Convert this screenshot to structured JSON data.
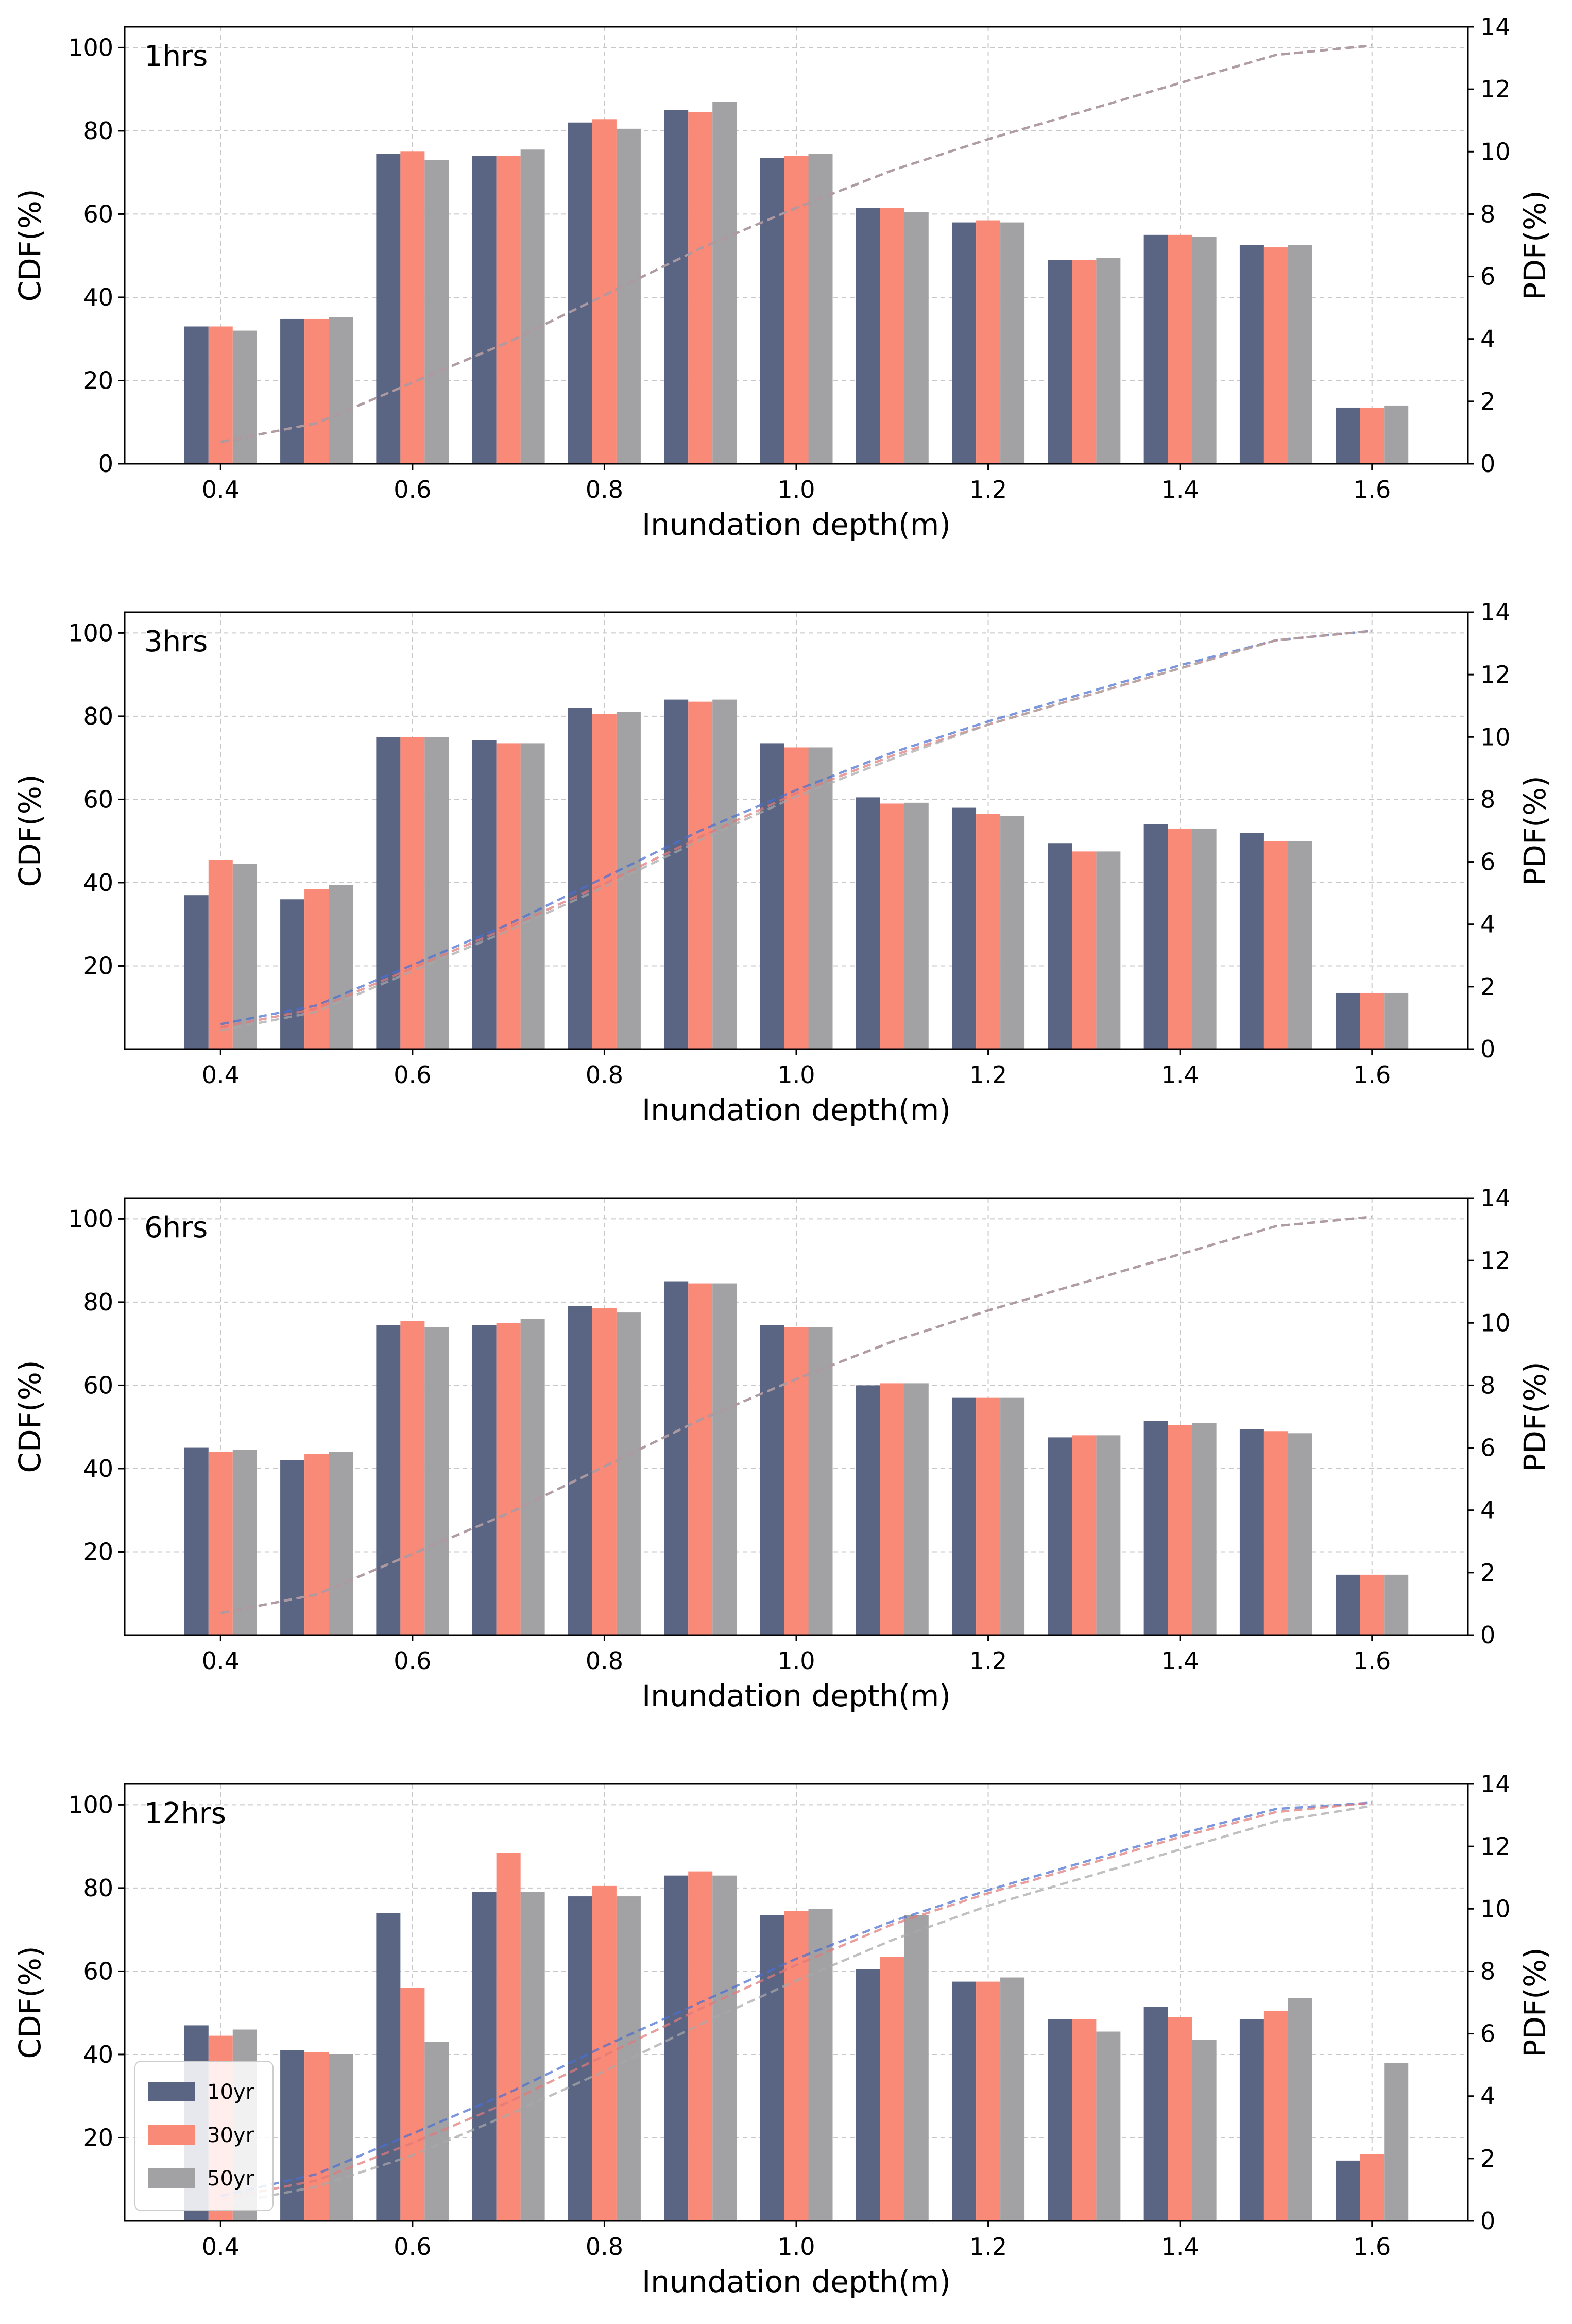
{
  "chart_data": [
    {
      "type": "bar",
      "title": "1hrs",
      "xlabel": "Inundation depth(m)",
      "ylabel": "CDF(%)",
      "ylabel_right": "PDF(%)",
      "ylim": [
        0,
        105
      ],
      "ylim_right": [
        0,
        14
      ],
      "y_ticks": [
        0,
        20,
        40,
        60,
        80,
        100
      ],
      "y_ticks_right": [
        0,
        2,
        4,
        6,
        8,
        10,
        12,
        14
      ],
      "x_ticks": [
        "0.4",
        "0.6",
        "0.8",
        "1.0",
        "1.2",
        "1.4",
        "1.6"
      ],
      "categories": [
        0.4,
        0.5,
        0.6,
        0.7,
        0.8,
        0.9,
        1.0,
        1.1,
        1.2,
        1.3,
        1.4,
        1.5,
        1.6
      ],
      "series": [
        {
          "name": "10yr",
          "values": [
            33,
            34.8,
            74.5,
            74,
            82,
            85,
            73.5,
            61.5,
            58,
            49,
            55,
            52.5,
            13.5
          ]
        },
        {
          "name": "30yr",
          "values": [
            33,
            34.8,
            75,
            74,
            82.8,
            84.5,
            74,
            61.5,
            58.5,
            49,
            55,
            52,
            13.5
          ]
        },
        {
          "name": "50yr",
          "values": [
            32,
            35.2,
            73,
            75.5,
            80.5,
            87,
            74.5,
            60.5,
            58,
            49.5,
            54.5,
            52.5,
            14
          ]
        }
      ],
      "pdf_lines": [
        {
          "name": "10yr",
          "values": [
            0.7,
            1.3,
            2.6,
            3.9,
            5.4,
            6.9,
            8.2,
            9.4,
            10.4,
            11.3,
            12.2,
            13.1,
            13.4
          ]
        },
        {
          "name": "30yr",
          "values": [
            0.7,
            1.3,
            2.6,
            3.9,
            5.4,
            6.9,
            8.2,
            9.4,
            10.4,
            11.3,
            12.2,
            13.1,
            13.4
          ]
        },
        {
          "name": "50yr",
          "values": [
            0.7,
            1.3,
            2.6,
            3.9,
            5.4,
            6.9,
            8.2,
            9.4,
            10.4,
            11.3,
            12.2,
            13.1,
            13.4
          ]
        }
      ]
    },
    {
      "type": "bar",
      "title": "3hrs",
      "xlabel": "Inundation depth(m)",
      "ylabel": "CDF(%)",
      "ylabel_right": "PDF(%)",
      "ylim": [
        0,
        105
      ],
      "ylim_right": [
        0,
        14
      ],
      "y_ticks": [
        20,
        40,
        60,
        80,
        100
      ],
      "y_ticks_right": [
        0,
        2,
        4,
        6,
        8,
        10,
        12,
        14
      ],
      "x_ticks": [
        "0.4",
        "0.6",
        "0.8",
        "1.0",
        "1.2",
        "1.4",
        "1.6"
      ],
      "categories": [
        0.4,
        0.5,
        0.6,
        0.7,
        0.8,
        0.9,
        1.0,
        1.1,
        1.2,
        1.3,
        1.4,
        1.5,
        1.6
      ],
      "series": [
        {
          "name": "10yr",
          "values": [
            37,
            36,
            75,
            74.2,
            82,
            84,
            73.5,
            60.5,
            58,
            49.5,
            54,
            52,
            13.5
          ]
        },
        {
          "name": "30yr",
          "values": [
            45.5,
            38.5,
            75,
            73.5,
            80.5,
            83.5,
            72.5,
            59,
            56.5,
            47.5,
            53,
            50,
            13.5
          ]
        },
        {
          "name": "50yr",
          "values": [
            44.5,
            39.5,
            75,
            73.5,
            81,
            84,
            72.5,
            59.2,
            56,
            47.5,
            53,
            50,
            13.5
          ]
        }
      ],
      "pdf_lines": [
        {
          "name": "10yr",
          "values": [
            0.8,
            1.4,
            2.7,
            4.0,
            5.5,
            7.0,
            8.3,
            9.5,
            10.5,
            11.4,
            12.3,
            13.1,
            13.4
          ]
        },
        {
          "name": "30yr",
          "values": [
            0.7,
            1.3,
            2.6,
            3.9,
            5.3,
            6.8,
            8.2,
            9.4,
            10.4,
            11.3,
            12.2,
            13.1,
            13.4
          ]
        },
        {
          "name": "50yr",
          "values": [
            0.6,
            1.2,
            2.5,
            3.8,
            5.2,
            6.7,
            8.1,
            9.3,
            10.4,
            11.3,
            12.2,
            13.1,
            13.4
          ]
        }
      ]
    },
    {
      "type": "bar",
      "title": "6hrs",
      "xlabel": "Inundation depth(m)",
      "ylabel": "CDF(%)",
      "ylabel_right": "PDF(%)",
      "ylim": [
        0,
        105
      ],
      "ylim_right": [
        0,
        14
      ],
      "y_ticks": [
        20,
        40,
        60,
        80,
        100
      ],
      "y_ticks_right": [
        0,
        2,
        4,
        6,
        8,
        10,
        12,
        14
      ],
      "x_ticks": [
        "0.4",
        "0.6",
        "0.8",
        "1.0",
        "1.2",
        "1.4",
        "1.6"
      ],
      "categories": [
        0.4,
        0.5,
        0.6,
        0.7,
        0.8,
        0.9,
        1.0,
        1.1,
        1.2,
        1.3,
        1.4,
        1.5,
        1.6
      ],
      "series": [
        {
          "name": "10yr",
          "values": [
            45,
            42,
            74.5,
            74.5,
            79,
            85,
            74.5,
            60,
            57,
            47.5,
            51.5,
            49.5,
            14.5
          ]
        },
        {
          "name": "30yr",
          "values": [
            44,
            43.5,
            75.5,
            75,
            78.5,
            84.5,
            74,
            60.5,
            57,
            48,
            50.5,
            49,
            14.5
          ]
        },
        {
          "name": "50yr",
          "values": [
            44.5,
            44,
            74,
            76,
            77.5,
            84.5,
            74,
            60.5,
            57,
            48,
            51,
            48.5,
            14.5
          ]
        }
      ],
      "pdf_lines": [
        {
          "name": "10yr",
          "values": [
            0.7,
            1.3,
            2.6,
            3.9,
            5.4,
            6.9,
            8.2,
            9.4,
            10.4,
            11.3,
            12.2,
            13.1,
            13.4
          ]
        },
        {
          "name": "30yr",
          "values": [
            0.7,
            1.3,
            2.6,
            3.9,
            5.4,
            6.9,
            8.2,
            9.4,
            10.4,
            11.3,
            12.2,
            13.1,
            13.4
          ]
        },
        {
          "name": "50yr",
          "values": [
            0.7,
            1.3,
            2.6,
            3.9,
            5.4,
            6.9,
            8.2,
            9.4,
            10.4,
            11.3,
            12.2,
            13.1,
            13.4
          ]
        }
      ]
    },
    {
      "type": "bar",
      "title": "12hrs",
      "xlabel": "Inundation depth(m)",
      "ylabel": "CDF(%)",
      "ylabel_right": "PDF(%)",
      "ylim": [
        0,
        105
      ],
      "ylim_right": [
        0,
        14
      ],
      "y_ticks": [
        20,
        40,
        60,
        80,
        100
      ],
      "y_ticks_right": [
        0,
        2,
        4,
        6,
        8,
        10,
        12,
        14
      ],
      "x_ticks": [
        "0.4",
        "0.6",
        "0.8",
        "1.0",
        "1.2",
        "1.4",
        "1.6"
      ],
      "categories": [
        0.4,
        0.5,
        0.6,
        0.7,
        0.8,
        0.9,
        1.0,
        1.1,
        1.2,
        1.3,
        1.4,
        1.5,
        1.6
      ],
      "legend": {
        "position": "lower-left",
        "entries": [
          "10yr",
          "30yr",
          "50yr"
        ]
      },
      "series": [
        {
          "name": "10yr",
          "values": [
            47,
            41,
            74,
            79,
            78,
            83,
            73.5,
            60.5,
            57.5,
            48.5,
            51.5,
            48.5,
            14.5
          ]
        },
        {
          "name": "30yr",
          "values": [
            44.5,
            40.5,
            56,
            88.5,
            80.5,
            84,
            74.5,
            63.5,
            57.5,
            48.5,
            49,
            50.5,
            16
          ]
        },
        {
          "name": "50yr",
          "values": [
            46,
            40,
            43,
            79,
            78,
            83,
            75,
            73.5,
            58.5,
            45.5,
            43.5,
            53.5,
            38
          ]
        }
      ],
      "pdf_lines": [
        {
          "name": "10yr",
          "values": [
            0.8,
            1.5,
            2.8,
            4.1,
            5.6,
            7.0,
            8.4,
            9.6,
            10.6,
            11.5,
            12.4,
            13.2,
            13.4
          ]
        },
        {
          "name": "30yr",
          "values": [
            0.7,
            1.3,
            2.5,
            3.8,
            5.3,
            6.8,
            8.2,
            9.5,
            10.5,
            11.4,
            12.3,
            13.1,
            13.4
          ]
        },
        {
          "name": "50yr",
          "values": [
            0.5,
            1.1,
            2.1,
            3.4,
            4.8,
            6.3,
            7.7,
            9.0,
            10.1,
            11.0,
            11.9,
            12.8,
            13.3
          ]
        }
      ]
    }
  ],
  "style": {
    "bar_colors": {
      "10yr": "#5a6584",
      "30yr": "#fa8a78",
      "50yr": "#a2a2a4"
    },
    "line_colors": {
      "10yr": "#4a6fd0",
      "30yr": "#e07878",
      "50yr": "#a8a8a8"
    },
    "grid_color": "#c8c8c8"
  }
}
